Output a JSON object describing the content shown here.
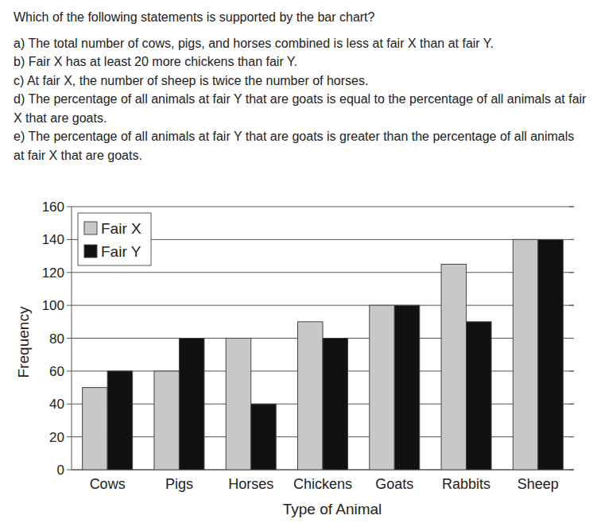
{
  "question": {
    "prompt": "Which of the following statements is supported by the bar chart?",
    "options": [
      "a) The total number of cows, pigs, and horses combined is less at fair X than at fair Y.",
      "b) Fair X has at least 20 more chickens than fair Y.",
      "c) At fair X, the number of sheep is twice the number of horses.",
      "d) The percentage of all animals at fair Y that are goats is equal to the percentage of all animals at fair X that are goats.",
      "e) The percentage of all animals at fair Y that are goats is greater than the percentage of all animals at fair X that are goats."
    ]
  },
  "chart_data": {
    "type": "bar",
    "x_label": "Type of Animal",
    "y_label": "Frequency",
    "categories": [
      "Cows",
      "Pigs",
      "Horses",
      "Chickens",
      "Goats",
      "Rabbits",
      "Sheep"
    ],
    "series": [
      {
        "name": "Fair X",
        "color": "#c8c8c8",
        "values": [
          50,
          60,
          80,
          90,
          100,
          125,
          140
        ]
      },
      {
        "name": "Fair Y",
        "color": "#111111",
        "values": [
          60,
          80,
          40,
          80,
          100,
          90,
          140
        ]
      }
    ],
    "ylim": [
      0,
      160
    ],
    "yticks": [
      0,
      20,
      40,
      60,
      80,
      100,
      120,
      140,
      160
    ],
    "grid": true,
    "legend": "upper left"
  }
}
